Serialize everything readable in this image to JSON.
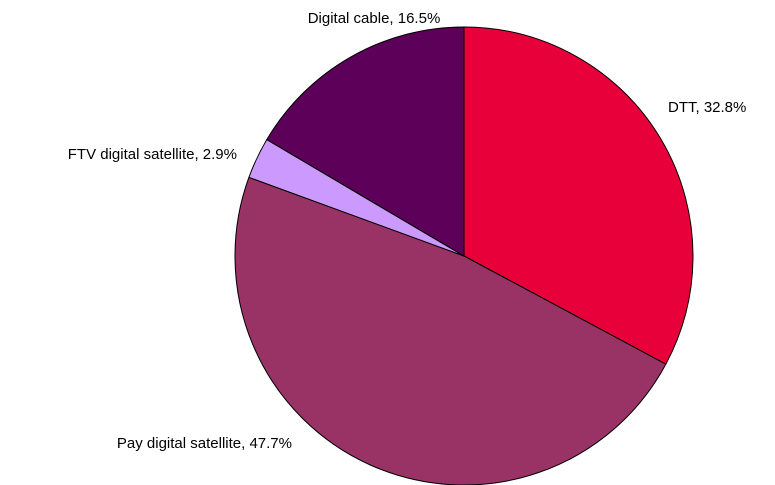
{
  "chart_data": {
    "type": "pie",
    "title": "",
    "start_angle_deg": 0,
    "direction": "clockwise",
    "legend": "none",
    "slices": [
      {
        "name": "DTT",
        "value": 32.8,
        "label": "DTT, 32.8%",
        "color": "#e8003a"
      },
      {
        "name": "Pay digital satellite",
        "value": 47.7,
        "label": "Pay digital satellite, 47.7%",
        "color": "#993366"
      },
      {
        "name": "FTV digital satellite",
        "value": 2.9,
        "label": "FTV digital satellite, 2.9%",
        "color": "#cc99ff"
      },
      {
        "name": "Digital cable",
        "value": 16.5,
        "label": "Digital cable, 16.5%",
        "color": "#5c0059"
      }
    ]
  }
}
